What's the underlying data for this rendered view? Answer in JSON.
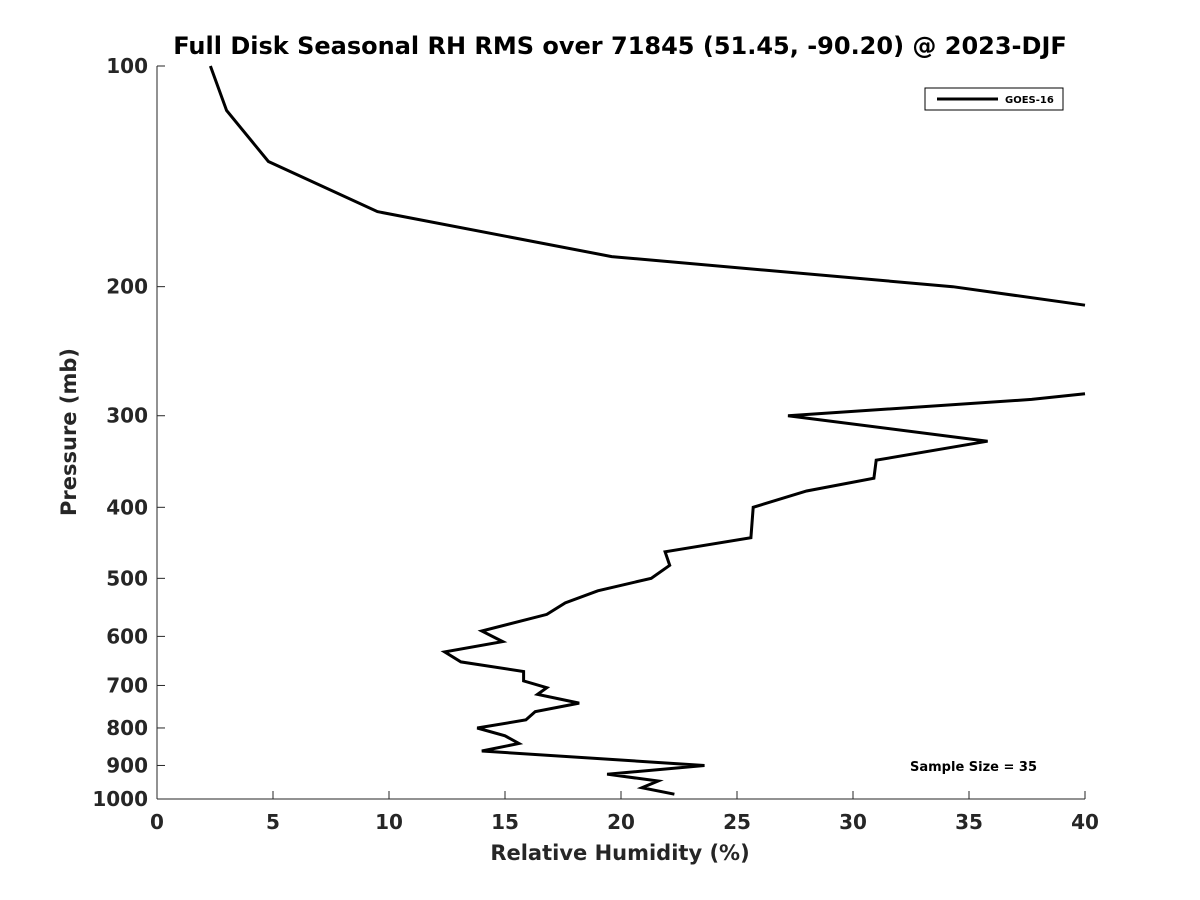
{
  "chart_data": {
    "type": "line",
    "title": "Full Disk Seasonal RH RMS over 71845 (51.45, -90.20) @ 2023-DJF",
    "xlabel": "Relative Humidity (%)",
    "ylabel": "Pressure (mb)",
    "xlim": [
      0,
      40
    ],
    "ylim": [
      100,
      1000
    ],
    "yscale": "log",
    "y_reversed": true,
    "xticks": [
      0,
      5,
      10,
      15,
      20,
      25,
      30,
      35,
      40
    ],
    "xtick_labels": [
      "0",
      "5",
      "10",
      "15",
      "20",
      "25",
      "30",
      "35",
      "40"
    ],
    "yticks": [
      100,
      200,
      300,
      400,
      500,
      600,
      700,
      800,
      900,
      1000
    ],
    "ytick_labels": [
      "100",
      "200",
      "300",
      "400",
      "500",
      "600",
      "700",
      "800",
      "900",
      "1000"
    ],
    "grid": false,
    "legend_position": "top-right",
    "series": [
      {
        "name": "GOES-16",
        "color": "#000000",
        "segments": [
          {
            "x": [
              2.3,
              3.0,
              4.8,
              9.5,
              19.6,
              34.3,
              40.0
            ],
            "y": [
              100,
              115,
              135,
              158,
              182,
              200,
              212
            ]
          },
          {
            "x": [
              40.0,
              37.7,
              27.2,
              35.8,
              31.0,
              30.9,
              28.0,
              25.7,
              25.6,
              21.9,
              22.1,
              21.3,
              19.0,
              17.6,
              16.8,
              14.0,
              14.9,
              12.4,
              13.1,
              15.8,
              15.8,
              16.8,
              16.4,
              18.2,
              16.3,
              15.9,
              13.8,
              15.0,
              15.6,
              14.0,
              23.6,
              19.4,
              21.6,
              20.9,
              22.3
            ],
            "y": [
              280,
              285,
              300,
              325,
              345,
              365,
              380,
              400,
              440,
              460,
              480,
              500,
              520,
              540,
              560,
              590,
              610,
              630,
              650,
              670,
              690,
              705,
              720,
              740,
              760,
              780,
              800,
              820,
              840,
              860,
              900,
              925,
              945,
              965,
              985
            ]
          }
        ]
      }
    ],
    "annotations": [
      {
        "text": "Sample Size = 35",
        "position": "bottom-right"
      }
    ]
  }
}
